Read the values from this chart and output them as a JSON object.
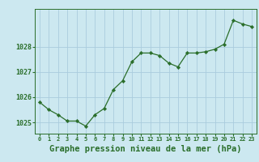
{
  "x": [
    0,
    1,
    2,
    3,
    4,
    5,
    6,
    7,
    8,
    9,
    10,
    11,
    12,
    13,
    14,
    15,
    16,
    17,
    18,
    19,
    20,
    21,
    22,
    23
  ],
  "y": [
    1025.8,
    1025.5,
    1025.3,
    1025.05,
    1025.05,
    1024.85,
    1025.3,
    1025.55,
    1026.3,
    1026.65,
    1027.4,
    1027.75,
    1027.75,
    1027.65,
    1027.35,
    1027.2,
    1027.75,
    1027.75,
    1027.8,
    1027.9,
    1028.1,
    1029.05,
    1028.9,
    1028.8
  ],
  "line_color": "#2a6e2a",
  "marker": "D",
  "marker_size": 2.2,
  "bg_color": "#cce8f0",
  "grid_color": "#aaccdd",
  "title": "Graphe pression niveau de la mer (hPa)",
  "title_color": "#2a6e2a",
  "title_fontsize": 7.5,
  "ylabel_ticks": [
    1025,
    1026,
    1027,
    1028
  ],
  "ylim": [
    1024.55,
    1029.5
  ],
  "xlim": [
    -0.5,
    23.5
  ],
  "xtick_labels": [
    "0",
    "1",
    "2",
    "3",
    "4",
    "5",
    "6",
    "7",
    "8",
    "9",
    "10",
    "11",
    "12",
    "13",
    "14",
    "15",
    "16",
    "17",
    "18",
    "19",
    "20",
    "21",
    "22",
    "23"
  ]
}
